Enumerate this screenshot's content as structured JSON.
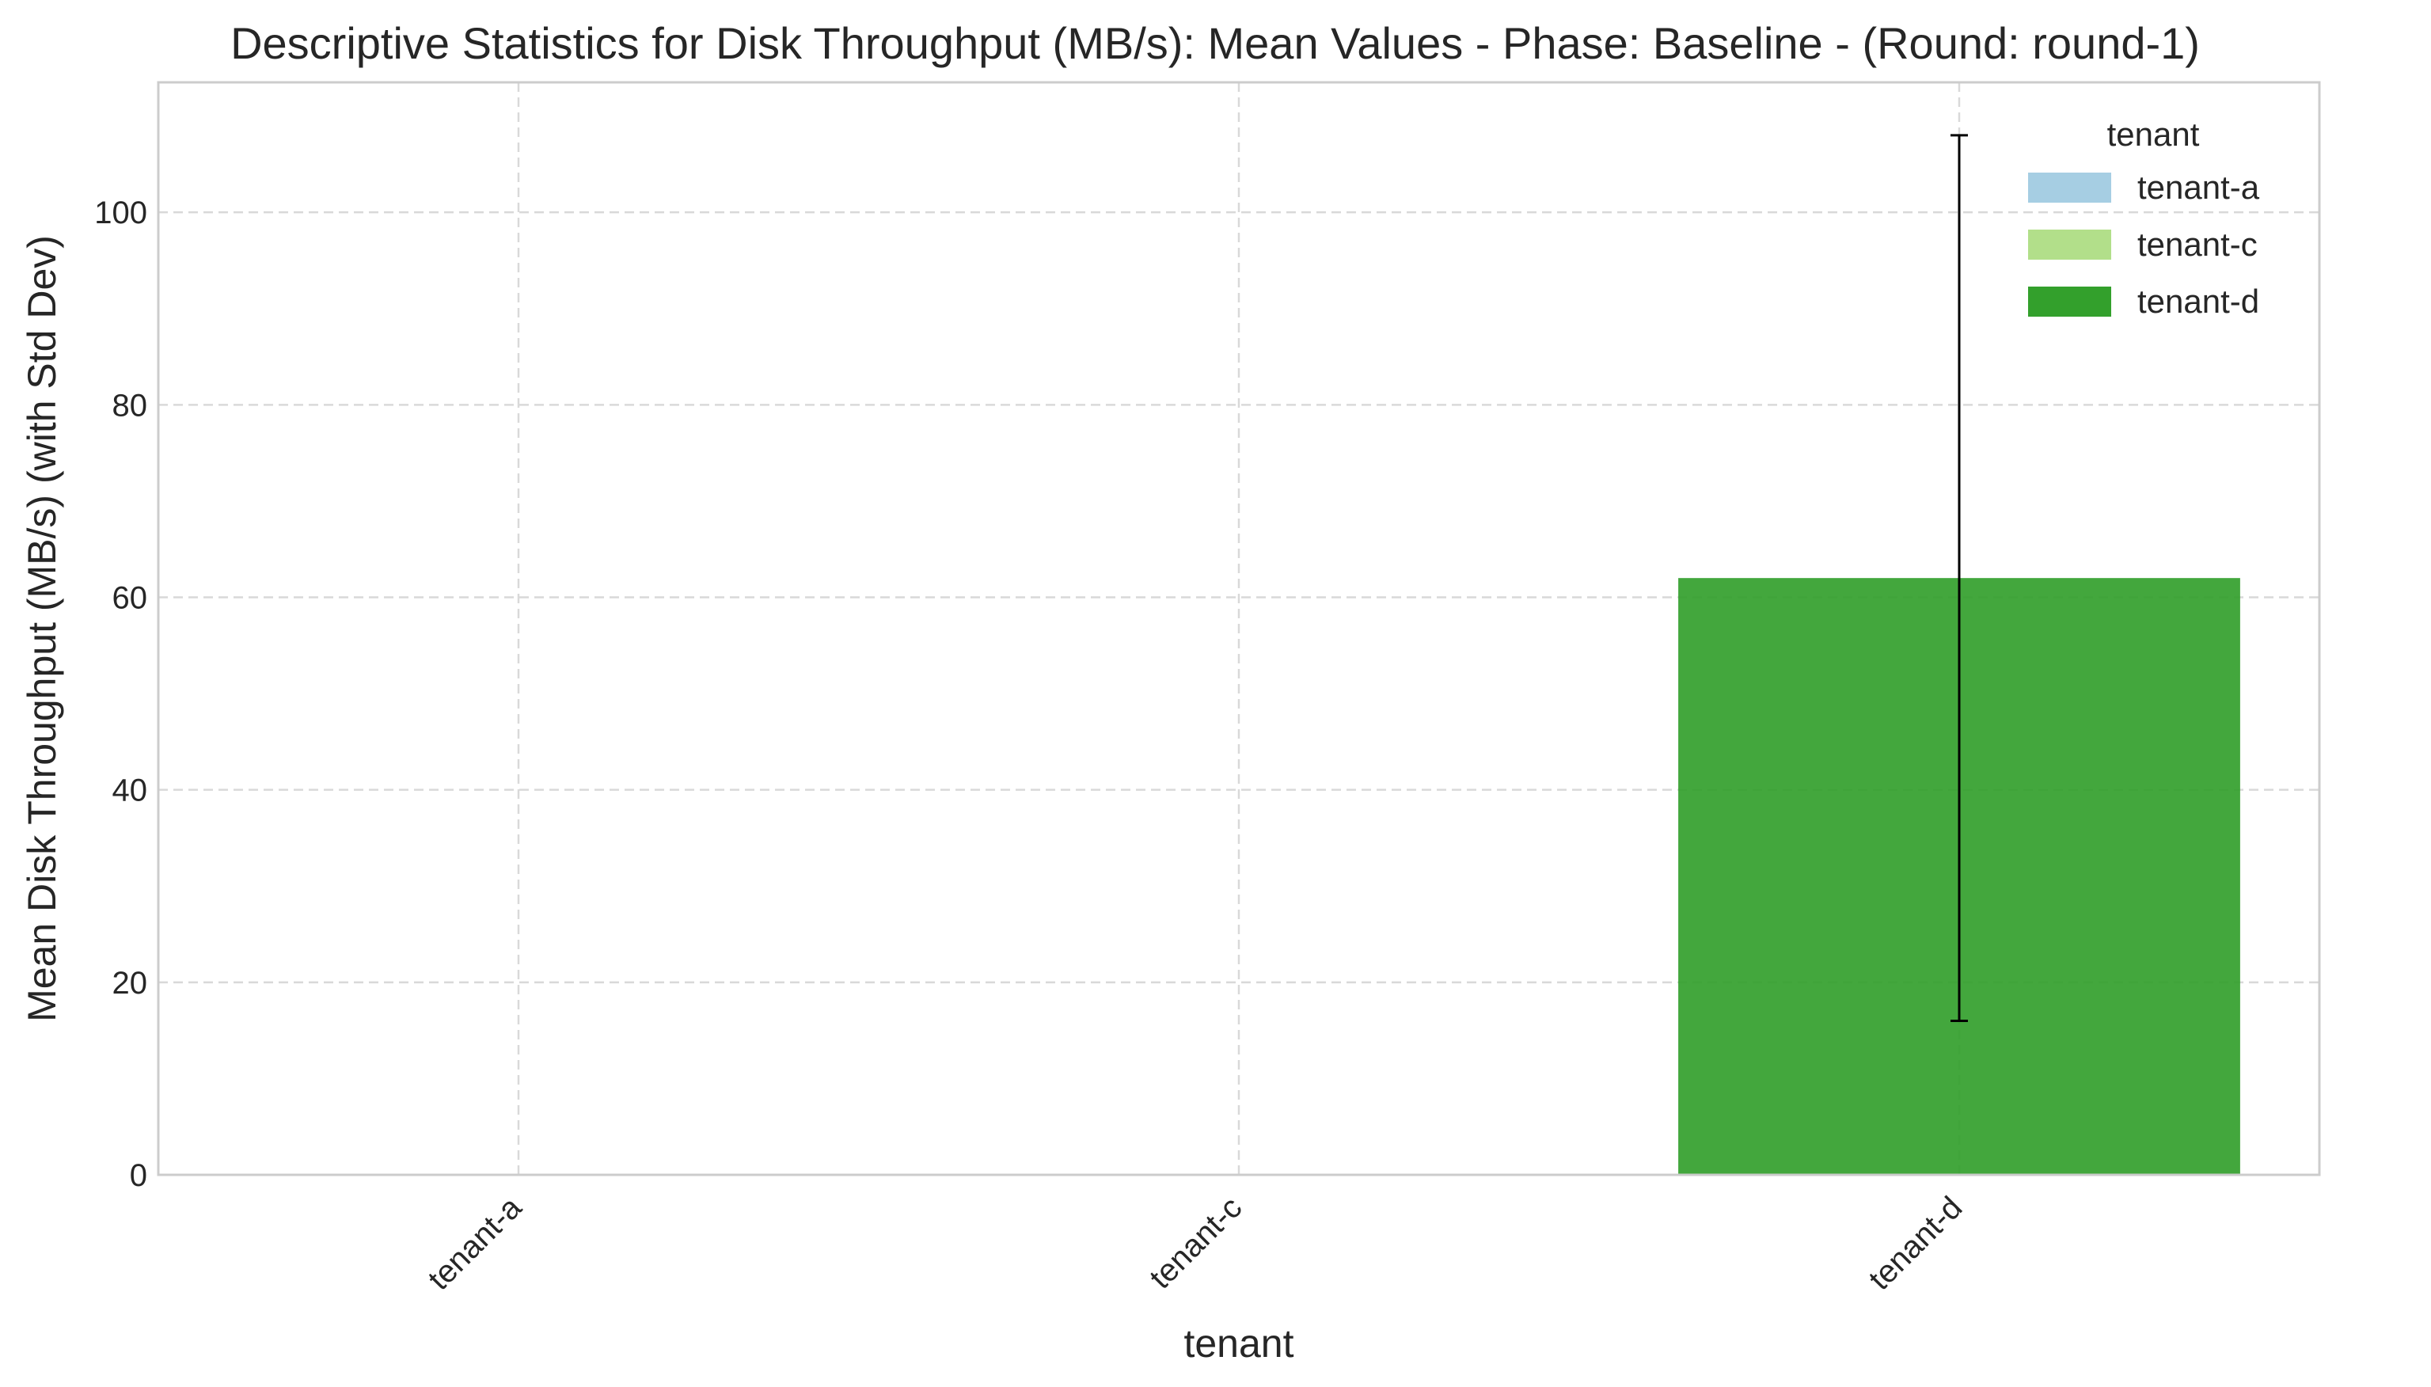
{
  "chart_data": {
    "type": "bar",
    "title": "Descriptive Statistics for Disk Throughput (MB/s): Mean Values - Phase: Baseline - (Round: round-1)",
    "xlabel": "tenant",
    "ylabel": "Mean Disk Throughput (MB/s) (with Std Dev)",
    "categories": [
      "tenant-a",
      "tenant-c",
      "tenant-d"
    ],
    "values": [
      0,
      0,
      62
    ],
    "std_dev": [
      0,
      0,
      46
    ],
    "colors": [
      "#a6cee3",
      "#b2df8a",
      "#33a02c"
    ],
    "ylim": [
      0,
      113.5
    ],
    "yticks": [
      0,
      20,
      40,
      60,
      80,
      100
    ],
    "grid": true,
    "legend": {
      "title": "tenant",
      "placement": "top-right",
      "entries": [
        "tenant-a",
        "tenant-c",
        "tenant-d"
      ]
    }
  }
}
